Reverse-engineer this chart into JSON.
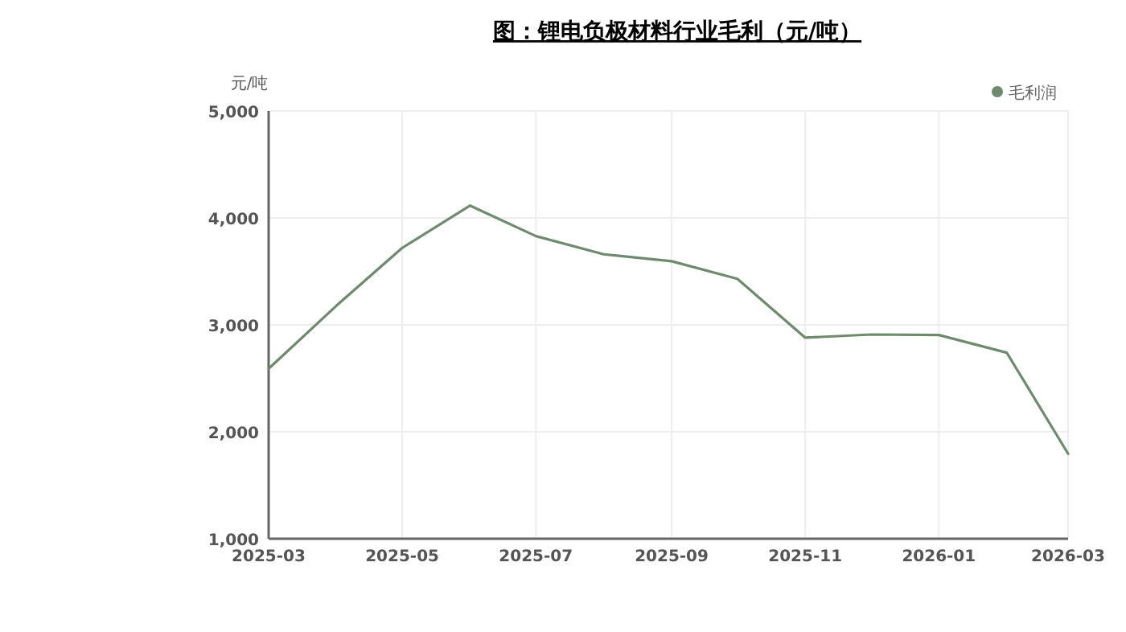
{
  "chart_data": {
    "type": "line",
    "title": "图：锂电负极材料行业毛利（元/吨）",
    "ylabel": "元/吨",
    "x": [
      "2025-03",
      "2025-04",
      "2025-05",
      "2025-06",
      "2025-07",
      "2025-08",
      "2025-09",
      "2025-10",
      "2025-11",
      "2025-12",
      "2026-01",
      "2026-02",
      "2026-03"
    ],
    "series": [
      {
        "name": "毛利润",
        "color": "#6f8a6f",
        "values": [
          2590,
          3180,
          3720,
          4115,
          3830,
          3660,
          3595,
          3430,
          2880,
          2910,
          2905,
          2740,
          1795
        ]
      }
    ],
    "xlim": [
      "2025-03",
      "2026-03"
    ],
    "xticks": [
      {
        "value": "2025-03",
        "label": "2025-03"
      },
      {
        "value": "2025-05",
        "label": "2025-05"
      },
      {
        "value": "2025-07",
        "label": "2025-07"
      },
      {
        "value": "2025-09",
        "label": "2025-09"
      },
      {
        "value": "2025-11",
        "label": "2025-11"
      },
      {
        "value": "2026-01",
        "label": "2026-01"
      },
      {
        "value": "2026-03",
        "label": "2026-03"
      }
    ],
    "ylim": [
      1000,
      5000
    ],
    "yticks": [
      {
        "value": 1000,
        "label": "1,000"
      },
      {
        "value": 2000,
        "label": "2,000"
      },
      {
        "value": 3000,
        "label": "3,000"
      },
      {
        "value": 4000,
        "label": "4,000"
      },
      {
        "value": 5000,
        "label": "5,000"
      }
    ],
    "grid": true,
    "legend": "top right",
    "marker": "none",
    "line_style": "solid"
  }
}
